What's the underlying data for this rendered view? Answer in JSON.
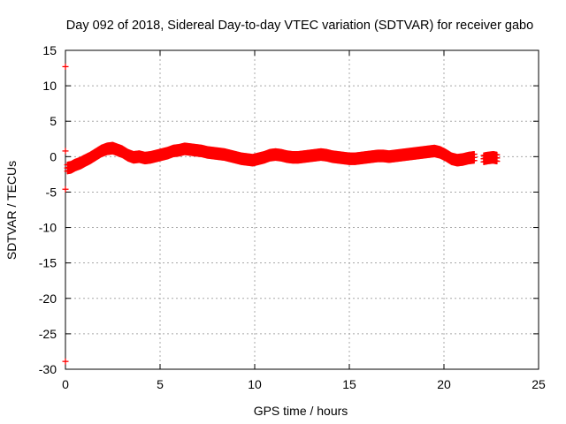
{
  "chart_data": {
    "type": "scatter",
    "title": "Day 092 of 2018, Sidereal Day-to-day VTEC variation (SDTVAR) for receiver gabo",
    "xlabel": "GPS time / hours",
    "ylabel": "SDTVAR / TECUs",
    "xlim": [
      0,
      25
    ],
    "ylim": [
      -30,
      15
    ],
    "x_ticks": [
      0,
      5,
      10,
      15,
      20,
      25
    ],
    "y_ticks": [
      15,
      10,
      5,
      0,
      -5,
      -10,
      -15,
      -20,
      -25,
      -30
    ],
    "x_tick_labels": [
      "0",
      "5",
      "10",
      "15",
      "20",
      "25"
    ],
    "y_tick_labels": [
      "15",
      "10",
      "5",
      "0",
      "-5",
      "-10",
      "-15",
      "-20",
      "-25",
      "-30"
    ],
    "grid": true,
    "legend": "none",
    "series": [
      {
        "marker": "+",
        "color": "#ff0000",
        "band_half_width": 0.45,
        "x": [
          0.1,
          0.3,
          0.5,
          0.8,
          1.0,
          1.3,
          1.6,
          1.9,
          2.2,
          2.5,
          2.8,
          3.0,
          3.3,
          3.6,
          3.9,
          4.2,
          4.5,
          4.8,
          5.1,
          5.4,
          5.7,
          6.0,
          6.3,
          6.6,
          6.9,
          7.2,
          7.5,
          7.8,
          8.1,
          8.4,
          8.7,
          9.0,
          9.3,
          9.6,
          9.9,
          10.2,
          10.5,
          10.8,
          11.1,
          11.4,
          11.7,
          12.0,
          12.3,
          12.6,
          12.9,
          13.2,
          13.5,
          13.8,
          14.1,
          14.4,
          14.7,
          15.0,
          15.3,
          15.6,
          15.9,
          16.2,
          16.5,
          16.8,
          17.1,
          17.4,
          17.7,
          18.0,
          18.3,
          18.6,
          18.9,
          19.2,
          19.5,
          19.8,
          20.1,
          20.4,
          20.7,
          21.0,
          21.3,
          21.6,
          22.1,
          22.3,
          22.6,
          22.8
        ],
        "y": [
          -1.6,
          -1.5,
          -1.2,
          -0.9,
          -0.6,
          -0.2,
          0.3,
          0.8,
          1.1,
          1.2,
          0.9,
          0.7,
          0.2,
          -0.1,
          0.0,
          -0.2,
          -0.1,
          0.1,
          0.3,
          0.5,
          0.8,
          0.9,
          1.1,
          1.0,
          0.9,
          0.8,
          0.6,
          0.5,
          0.4,
          0.3,
          0.1,
          -0.1,
          -0.3,
          -0.4,
          -0.5,
          -0.3,
          -0.1,
          0.2,
          0.3,
          0.2,
          0.0,
          -0.1,
          -0.1,
          0.0,
          0.1,
          0.2,
          0.3,
          0.2,
          0.0,
          -0.1,
          -0.2,
          -0.3,
          -0.3,
          -0.2,
          -0.1,
          0.0,
          0.1,
          0.1,
          0.0,
          0.1,
          0.2,
          0.3,
          0.4,
          0.5,
          0.6,
          0.7,
          0.8,
          0.6,
          0.2,
          -0.3,
          -0.5,
          -0.4,
          -0.2,
          -0.1,
          -0.3,
          -0.2,
          -0.1,
          -0.2
        ]
      },
      {
        "marker": "+",
        "color": "#ff0000",
        "band_half_width": 0,
        "x": [
          0,
          0,
          0,
          0
        ],
        "y": [
          12.7,
          0.8,
          -4.6,
          -28.9
        ]
      }
    ]
  }
}
